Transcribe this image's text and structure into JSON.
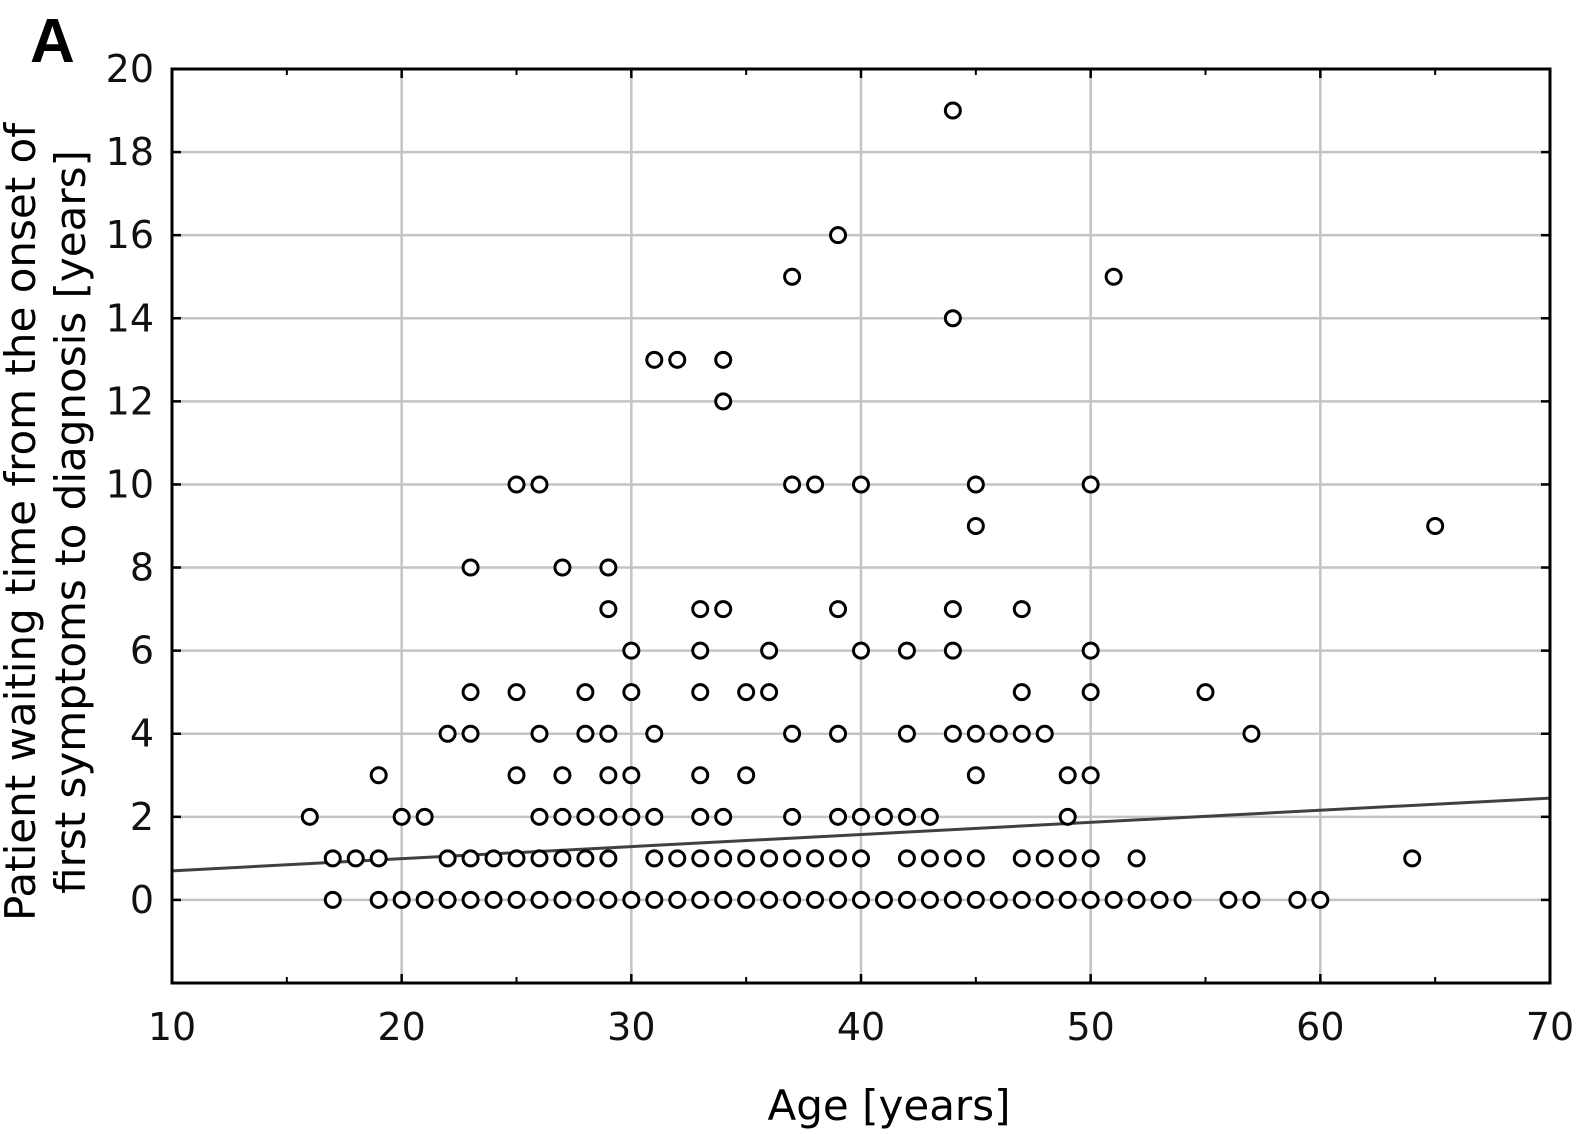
{
  "panel_label": "A",
  "chart_data": {
    "type": "scatter",
    "xlabel": "Age [years]",
    "ylabel_lines": [
      "Patient waiting time from the onset of",
      "first symptoms to diagnosis [years]"
    ],
    "xlim": [
      10,
      70
    ],
    "ylim": [
      -2,
      20
    ],
    "x_ticks": [
      10,
      20,
      30,
      40,
      50,
      60,
      70
    ],
    "y_ticks": [
      0,
      2,
      4,
      6,
      8,
      10,
      12,
      14,
      16,
      18,
      20
    ],
    "x_tick_labels": [
      "10",
      "20",
      "30",
      "40",
      "50",
      "60",
      "70"
    ],
    "y_tick_labels": [
      "0",
      "2",
      "4",
      "6",
      "8",
      "10",
      "12",
      "14",
      "16",
      "18",
      "20"
    ],
    "grid": true,
    "marker": "open-circle",
    "points": [
      [
        17,
        0
      ],
      [
        19,
        0
      ],
      [
        20,
        0
      ],
      [
        21,
        0
      ],
      [
        22,
        0
      ],
      [
        23,
        0
      ],
      [
        24,
        0
      ],
      [
        25,
        0
      ],
      [
        26,
        0
      ],
      [
        27,
        0
      ],
      [
        28,
        0
      ],
      [
        29,
        0
      ],
      [
        30,
        0
      ],
      [
        31,
        0
      ],
      [
        32,
        0
      ],
      [
        33,
        0
      ],
      [
        34,
        0
      ],
      [
        35,
        0
      ],
      [
        36,
        0
      ],
      [
        37,
        0
      ],
      [
        38,
        0
      ],
      [
        39,
        0
      ],
      [
        40,
        0
      ],
      [
        41,
        0
      ],
      [
        42,
        0
      ],
      [
        43,
        0
      ],
      [
        44,
        0
      ],
      [
        45,
        0
      ],
      [
        46,
        0
      ],
      [
        47,
        0
      ],
      [
        48,
        0
      ],
      [
        49,
        0
      ],
      [
        50,
        0
      ],
      [
        51,
        0
      ],
      [
        52,
        0
      ],
      [
        53,
        0
      ],
      [
        54,
        0
      ],
      [
        56,
        0
      ],
      [
        57,
        0
      ],
      [
        59,
        0
      ],
      [
        60,
        0
      ],
      [
        17,
        1
      ],
      [
        18,
        1
      ],
      [
        19,
        1
      ],
      [
        22,
        1
      ],
      [
        23,
        1
      ],
      [
        24,
        1
      ],
      [
        25,
        1
      ],
      [
        26,
        1
      ],
      [
        27,
        1
      ],
      [
        28,
        1
      ],
      [
        29,
        1
      ],
      [
        31,
        1
      ],
      [
        32,
        1
      ],
      [
        33,
        1
      ],
      [
        34,
        1
      ],
      [
        35,
        1
      ],
      [
        36,
        1
      ],
      [
        37,
        1
      ],
      [
        38,
        1
      ],
      [
        39,
        1
      ],
      [
        40,
        1
      ],
      [
        42,
        1
      ],
      [
        43,
        1
      ],
      [
        44,
        1
      ],
      [
        45,
        1
      ],
      [
        47,
        1
      ],
      [
        48,
        1
      ],
      [
        49,
        1
      ],
      [
        50,
        1
      ],
      [
        52,
        1
      ],
      [
        64,
        1
      ],
      [
        16,
        2
      ],
      [
        20,
        2
      ],
      [
        21,
        2
      ],
      [
        26,
        2
      ],
      [
        27,
        2
      ],
      [
        28,
        2
      ],
      [
        29,
        2
      ],
      [
        30,
        2
      ],
      [
        31,
        2
      ],
      [
        33,
        2
      ],
      [
        34,
        2
      ],
      [
        37,
        2
      ],
      [
        39,
        2
      ],
      [
        40,
        2
      ],
      [
        41,
        2
      ],
      [
        42,
        2
      ],
      [
        43,
        2
      ],
      [
        49,
        2
      ],
      [
        19,
        3
      ],
      [
        25,
        3
      ],
      [
        27,
        3
      ],
      [
        29,
        3
      ],
      [
        30,
        3
      ],
      [
        33,
        3
      ],
      [
        35,
        3
      ],
      [
        45,
        3
      ],
      [
        49,
        3
      ],
      [
        50,
        3
      ],
      [
        22,
        4
      ],
      [
        23,
        4
      ],
      [
        26,
        4
      ],
      [
        28,
        4
      ],
      [
        29,
        4
      ],
      [
        31,
        4
      ],
      [
        37,
        4
      ],
      [
        39,
        4
      ],
      [
        42,
        4
      ],
      [
        44,
        4
      ],
      [
        45,
        4
      ],
      [
        46,
        4
      ],
      [
        47,
        4
      ],
      [
        48,
        4
      ],
      [
        57,
        4
      ],
      [
        23,
        5
      ],
      [
        25,
        5
      ],
      [
        28,
        5
      ],
      [
        30,
        5
      ],
      [
        33,
        5
      ],
      [
        35,
        5
      ],
      [
        36,
        5
      ],
      [
        47,
        5
      ],
      [
        50,
        5
      ],
      [
        55,
        5
      ],
      [
        30,
        6
      ],
      [
        33,
        6
      ],
      [
        36,
        6
      ],
      [
        40,
        6
      ],
      [
        42,
        6
      ],
      [
        44,
        6
      ],
      [
        50,
        6
      ],
      [
        29,
        7
      ],
      [
        33,
        7
      ],
      [
        34,
        7
      ],
      [
        39,
        7
      ],
      [
        44,
        7
      ],
      [
        47,
        7
      ],
      [
        23,
        8
      ],
      [
        27,
        8
      ],
      [
        29,
        8
      ],
      [
        45,
        9
      ],
      [
        65,
        9
      ],
      [
        25,
        10
      ],
      [
        26,
        10
      ],
      [
        37,
        10
      ],
      [
        38,
        10
      ],
      [
        40,
        10
      ],
      [
        45,
        10
      ],
      [
        50,
        10
      ],
      [
        34,
        12
      ],
      [
        31,
        13
      ],
      [
        32,
        13
      ],
      [
        34,
        13
      ],
      [
        44,
        14
      ],
      [
        37,
        15
      ],
      [
        51,
        15
      ],
      [
        39,
        16
      ],
      [
        44,
        19
      ]
    ],
    "trend_line": {
      "x": [
        10,
        70
      ],
      "y": [
        0.7,
        2.45
      ]
    }
  }
}
